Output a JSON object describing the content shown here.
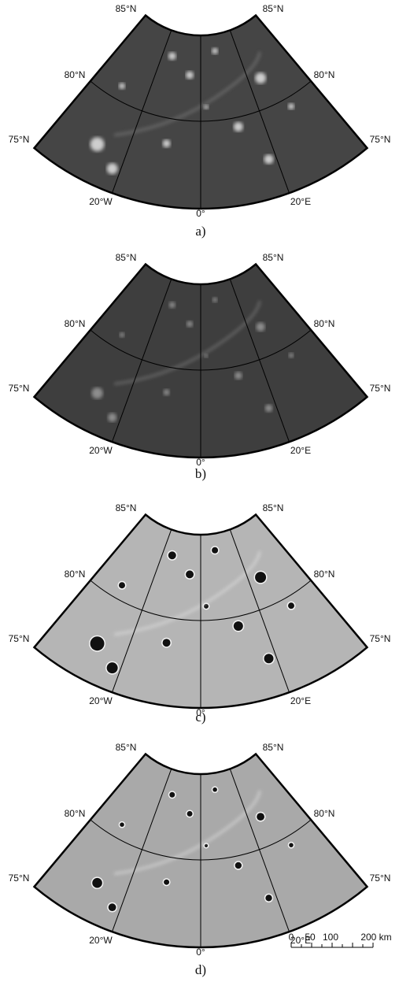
{
  "panels": [
    {
      "caption": "a)",
      "labels": {
        "lat85_left": "85°N",
        "lat85_right": "85°N",
        "lat80_left": "80°N",
        "lat80_right": "80°N",
        "lat75_left": "75°N",
        "lat75_right": "75°N",
        "lon_w": "20°W",
        "lon_0": "0°",
        "lon_e": "20°E"
      }
    },
    {
      "caption": "b)",
      "labels": {
        "lat85_left": "85°N",
        "lat85_right": "85°N",
        "lat80_left": "80°N",
        "lat80_right": "80°N",
        "lat75_left": "75°N",
        "lat75_right": "75°N",
        "lon_w": "20°W",
        "lon_0": "0°",
        "lon_e": "20°E"
      }
    },
    {
      "caption": "c)",
      "labels": {
        "lat85_left": "85°N",
        "lat85_right": "85°N",
        "lat80_left": "80°N",
        "lat80_right": "80°N",
        "lat75_left": "75°N",
        "lat75_right": "75°N",
        "lon_w": "20°W",
        "lon_0": "0°",
        "lon_e": "20°E"
      }
    },
    {
      "caption": "d)",
      "labels": {
        "lat85_left": "85°N",
        "lat85_right": "85°N",
        "lat80_left": "80°N",
        "lat80_right": "80°N",
        "lat75_left": "75°N",
        "lat75_right": "75°N",
        "lon_w": "20°W",
        "lon_0": "0°",
        "lon_e": "20°E"
      }
    }
  ],
  "scale_bar": {
    "labels": [
      "0",
      "50",
      "100",
      "200 km"
    ]
  }
}
